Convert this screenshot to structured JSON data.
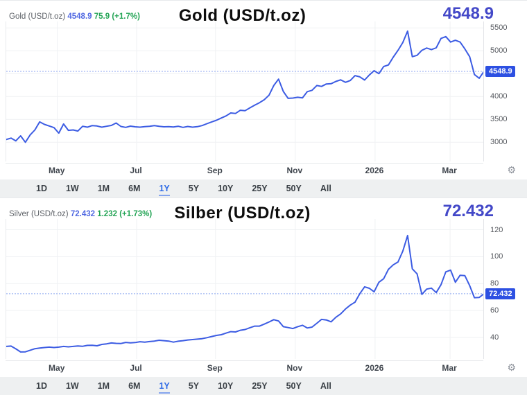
{
  "widget": {
    "name": "precious-metals-price-charts"
  },
  "colors": {
    "line_blue": "#3c5ce3",
    "big_value_blue": "#4348c8",
    "legend_value_blue": "#5068e2",
    "change_green": "#23a455",
    "price_badge_bg": "#2d50e2",
    "price_line_dotted": "#8cა6f0",
    "grid": "#eff1f3",
    "axis_text": "#55585e",
    "selected_range_blue": "#2e6be6"
  },
  "range_buttons": {
    "items": [
      "1D",
      "1W",
      "1M",
      "6M",
      "1Y",
      "5Y",
      "10Y",
      "25Y",
      "50Y",
      "All"
    ],
    "selected": "1Y"
  },
  "icons": {
    "settings": "gear"
  },
  "chart_data": [
    {
      "type": "line",
      "title": "Gold (USD/t.oz)",
      "legend": {
        "symbol": "Gold (USD/t.oz)",
        "last": "4548.9",
        "change": "75.9 (+1.7%)"
      },
      "big_value": "4548.9",
      "current_price": 4548.9,
      "price_badge_label": "4548.9",
      "line_color": "#3c5ce3",
      "ylim": [
        2580,
        5640
      ],
      "y_gridlines": [
        3000,
        3500,
        4000,
        4500,
        5000,
        5500
      ],
      "y_tick_labels": [
        5500,
        5000,
        4000,
        3500,
        3000
      ],
      "x_tick_labels": [
        "May",
        "Jul",
        "Sep",
        "Nov",
        "2026",
        "Mar"
      ],
      "x_tick_pct": [
        10.7,
        27.3,
        43.8,
        60.5,
        77.2,
        92.9
      ],
      "legend_position": "top-left",
      "grid": true,
      "values": [
        3060,
        3090,
        3030,
        3140,
        3000,
        3160,
        3270,
        3445,
        3390,
        3355,
        3320,
        3200,
        3400,
        3260,
        3270,
        3245,
        3350,
        3330,
        3365,
        3355,
        3330,
        3350,
        3368,
        3420,
        3345,
        3325,
        3353,
        3337,
        3330,
        3340,
        3350,
        3365,
        3350,
        3337,
        3340,
        3335,
        3350,
        3325,
        3345,
        3330,
        3340,
        3365,
        3405,
        3445,
        3482,
        3530,
        3575,
        3640,
        3630,
        3700,
        3690,
        3752,
        3810,
        3865,
        3930,
        4030,
        4240,
        4380,
        4110,
        3960,
        3966,
        3982,
        3970,
        4105,
        4135,
        4240,
        4220,
        4273,
        4280,
        4330,
        4365,
        4310,
        4350,
        4457,
        4430,
        4360,
        4470,
        4565,
        4500,
        4655,
        4690,
        4860,
        5010,
        5180,
        5430,
        4870,
        4900,
        5010,
        5060,
        5025,
        5065,
        5270,
        5310,
        5190,
        5230,
        5190,
        5040,
        4870,
        4480,
        4400,
        4549
      ]
    },
    {
      "type": "line",
      "title": "Silber (USD/t.oz)",
      "legend": {
        "symbol": "Silver (USD/t.oz)",
        "last": "72.432",
        "change": "1.232 (+1.73%)"
      },
      "big_value": "72.432",
      "current_price": 72.432,
      "price_badge_label": "72.432",
      "line_color": "#3c5ce3",
      "ylim": [
        24,
        128
      ],
      "y_gridlines": [
        40,
        60,
        80,
        100,
        120
      ],
      "y_tick_labels": [
        120,
        100,
        80,
        60,
        40
      ],
      "x_tick_labels": [
        "May",
        "Jul",
        "Sep",
        "Nov",
        "2026",
        "Mar"
      ],
      "x_tick_pct": [
        10.7,
        27.3,
        43.8,
        60.5,
        77.2,
        92.9
      ],
      "legend_position": "top-left",
      "grid": true,
      "values": [
        33.3,
        33.6,
        31.5,
        29.2,
        29.3,
        30.5,
        31.6,
        32.1,
        32.5,
        32.8,
        32.5,
        32.8,
        33.3,
        33.0,
        33.3,
        33.7,
        33.4,
        34.1,
        34.2,
        33.8,
        34.8,
        35.2,
        35.9,
        35.6,
        35.5,
        36.3,
        36.0,
        36.2,
        36.8,
        36.5,
        36.9,
        37.3,
        37.9,
        37.6,
        37.3,
        36.5,
        37.2,
        37.6,
        38.1,
        38.4,
        38.7,
        39.1,
        39.8,
        40.7,
        41.5,
        42.0,
        43.2,
        44.3,
        44.1,
        45.3,
        45.9,
        47.2,
        48.4,
        48.4,
        49.9,
        51.5,
        53.2,
        52.2,
        48.0,
        47.3,
        46.6,
        48.0,
        49.0,
        47.0,
        47.7,
        50.5,
        53.4,
        53.0,
        51.6,
        55.0,
        57.5,
        61.1,
        64.0,
        66.2,
        72.5,
        77.6,
        76.5,
        73.9,
        81.0,
        83.6,
        90.6,
        93.9,
        96.1,
        104.1,
        115.7,
        91.0,
        87.2,
        72.0,
        75.9,
        76.6,
        73.3,
        79.2,
        88.7,
        90.0,
        81.0,
        86.2,
        85.9,
        78.5,
        69.5,
        69.7,
        72.432
      ]
    }
  ]
}
